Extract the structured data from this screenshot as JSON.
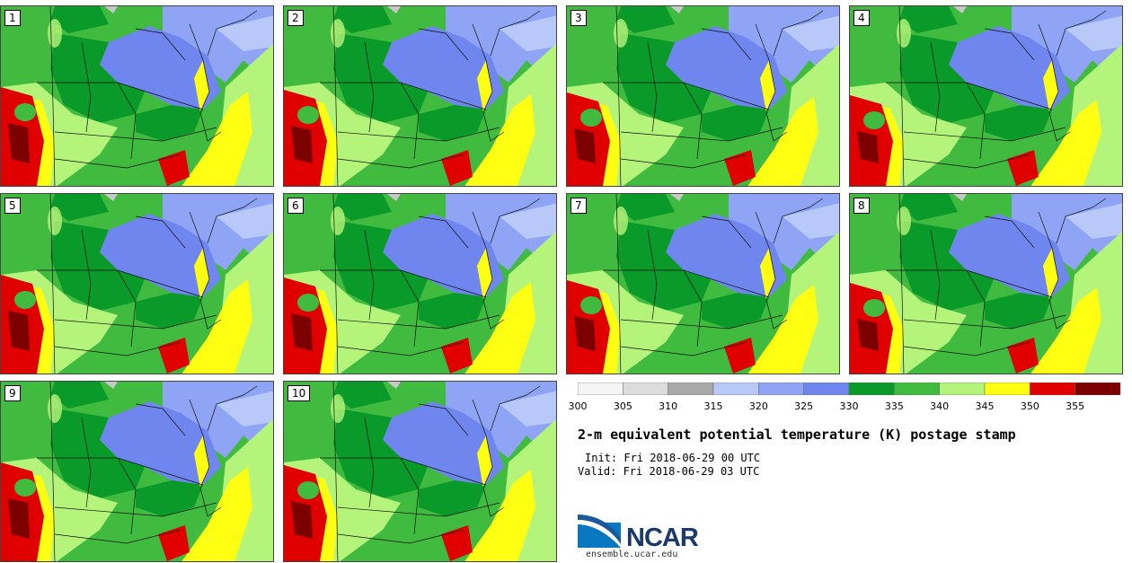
{
  "panels": [
    {
      "label": "1"
    },
    {
      "label": "2"
    },
    {
      "label": "3"
    },
    {
      "label": "4"
    },
    {
      "label": "5"
    },
    {
      "label": "6"
    },
    {
      "label": "7"
    },
    {
      "label": "8"
    },
    {
      "label": "9"
    },
    {
      "label": "10"
    }
  ],
  "colorbar": {
    "ticks": [
      "300",
      "305",
      "310",
      "315",
      "320",
      "325",
      "330",
      "335",
      "340",
      "345",
      "350",
      "355"
    ],
    "colors": [
      "#f4f4f4",
      "#dcdcdc",
      "#a8a8a8",
      "#b8c8f8",
      "#8fa4f4",
      "#6e86ee",
      "#0a9a2a",
      "#40bb40",
      "#b4f47a",
      "#ffff14",
      "#e00000",
      "#7c0000"
    ]
  },
  "title": "2-m equivalent potential temperature (K) postage stamp",
  "init": "Init: Fri 2018-06-29 00 UTC",
  "valid": "Valid: Fri 2018-06-29 03 UTC",
  "logo": {
    "name": "NCAR",
    "site": "ensemble.ucar.edu"
  }
}
